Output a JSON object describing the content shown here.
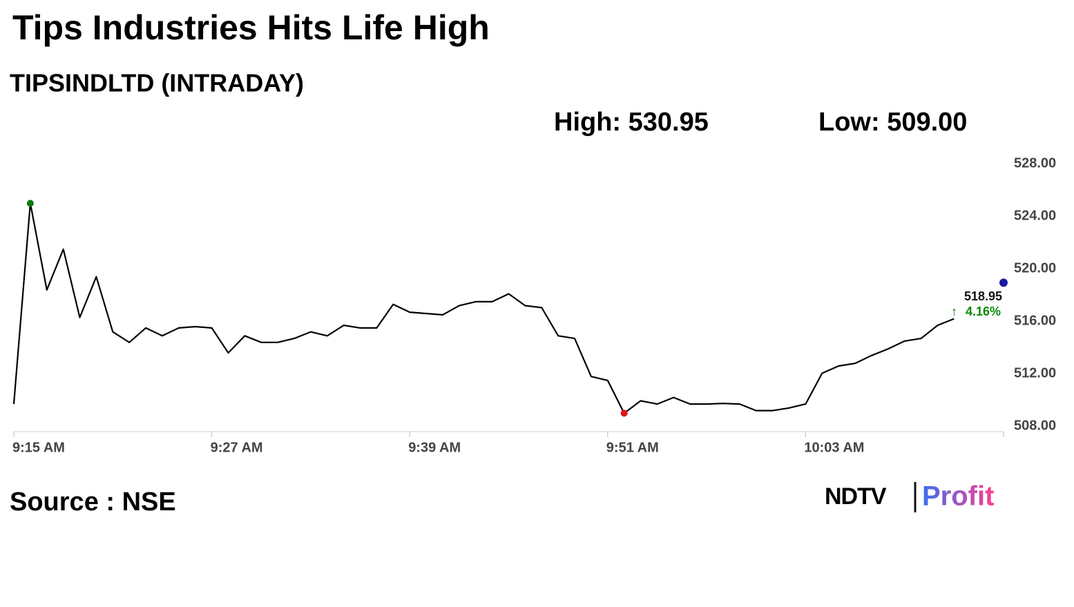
{
  "chart_data": {
    "type": "line",
    "title": "Tips Industries Hits Life High",
    "subtitle": "TIPSINDLTD (INTRADAY)",
    "stats": [
      "High: 530.95",
      "Low: 509.00"
    ],
    "x": [
      "9:15 AM",
      "9:16 AM",
      "9:17 AM",
      "9:18 AM",
      "9:19 AM",
      "9:20 AM",
      "9:21 AM",
      "9:22 AM",
      "9:23 AM",
      "9:24 AM",
      "9:25 AM",
      "9:26 AM",
      "9:27 AM",
      "9:28 AM",
      "9:29 AM",
      "9:30 AM",
      "9:31 AM",
      "9:32 AM",
      "9:33 AM",
      "9:34 AM",
      "9:35 AM",
      "9:36 AM",
      "9:37 AM",
      "9:38 AM",
      "9:39 AM",
      "9:40 AM",
      "9:41 AM",
      "9:42 AM",
      "9:43 AM",
      "9:44 AM",
      "9:45 AM",
      "9:46 AM",
      "9:47 AM",
      "9:48 AM",
      "9:49 AM",
      "9:50 AM",
      "9:51 AM",
      "9:52 AM",
      "9:53 AM",
      "9:54 AM",
      "9:55 AM",
      "9:56 AM",
      "9:57 AM",
      "9:58 AM",
      "9:59 AM",
      "10:00 AM",
      "10:01 AM",
      "10:02 AM",
      "10:03 AM",
      "10:04 AM",
      "10:05 AM",
      "10:06 AM",
      "10:07 AM",
      "10:08 AM",
      "10:09 AM",
      "10:10 AM",
      "10:11 AM",
      "10:12 AM"
    ],
    "values": [
      509.7,
      525.0,
      518.4,
      521.5,
      516.3,
      519.4,
      515.2,
      514.4,
      515.5,
      514.9,
      515.5,
      515.6,
      515.5,
      513.6,
      514.9,
      514.4,
      514.4,
      514.7,
      515.2,
      514.9,
      515.7,
      515.5,
      515.5,
      517.3,
      516.7,
      516.6,
      516.5,
      517.2,
      517.5,
      517.5,
      518.1,
      517.2,
      517.05,
      514.9,
      514.7,
      511.8,
      511.5,
      509.0,
      509.95,
      509.7,
      510.2,
      509.7,
      509.7,
      509.75,
      509.7,
      509.2,
      509.2,
      509.4,
      509.7,
      512.05,
      512.6,
      512.8,
      513.4,
      513.9,
      514.5,
      514.7,
      515.7,
      516.2
    ],
    "color": "#000000",
    "high_color": "#0a7d0a",
    "low_color": "#e0141e",
    "last_value": 518.95,
    "last_change": {
      "value": 4.16,
      "label": "4.16%"
    },
    "last_color": "#1a1aa6",
    "change_color": "#0a8a0a",
    "xlim": [
      "9:15 AM",
      "10:15 AM"
    ],
    "xticks": [
      "9:15 AM",
      "9:27 AM",
      "9:39 AM",
      "9:51 AM",
      "10:03 AM"
    ],
    "ylim": [
      507.6,
      528.6
    ],
    "yticks": [
      {
        "value": 508,
        "label": "508.00"
      },
      {
        "value": 512,
        "label": "512.00"
      },
      {
        "value": 516,
        "label": "516.00"
      },
      {
        "value": 520,
        "label": "520.00"
      },
      {
        "value": 524,
        "label": "524.00"
      },
      {
        "value": 528,
        "label": "528.00"
      }
    ],
    "source": "Source : NSE",
    "logo": [
      "NDTV",
      "Profit"
    ]
  }
}
